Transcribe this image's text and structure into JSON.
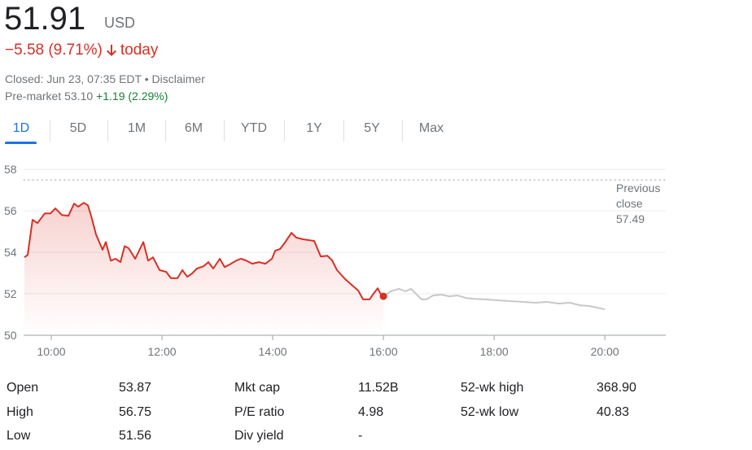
{
  "quote": {
    "price": "51.91",
    "currency": "USD",
    "change": "−5.58 (9.71%)",
    "change_period": "today",
    "status": "Closed: Jun 23, 07:35 EDT",
    "separator": "•",
    "disclaimer": "Disclaimer",
    "premarket_label": "Pre-market",
    "premarket_price": "53.10",
    "premarket_change": "+1.19 (2.29%)"
  },
  "tabs": [
    "1D",
    "5D",
    "1M",
    "6M",
    "YTD",
    "1Y",
    "5Y",
    "Max"
  ],
  "active_tab": "1D",
  "chart_data": {
    "type": "line",
    "series": [
      {
        "color": "#d93025",
        "x": [
          9.515,
          9.574,
          9.662,
          9.75,
          9.882,
          9.985,
          10.074,
          10.191,
          10.309,
          10.412,
          10.485,
          10.588,
          10.662,
          10.721,
          10.809,
          10.926,
          10.985,
          11.074,
          11.162,
          11.25,
          11.324,
          11.397,
          11.515,
          11.662,
          11.75,
          11.838,
          11.956,
          12.074,
          12.162,
          12.279,
          12.368,
          12.456,
          12.544,
          12.632,
          12.75,
          12.838,
          12.926,
          13.044,
          13.132,
          13.221,
          13.338,
          13.426,
          13.515,
          13.632,
          13.75,
          13.868,
          13.985,
          14.044,
          14.132,
          14.221,
          14.338,
          14.426,
          14.544,
          14.75,
          14.868,
          14.985,
          15.074,
          15.162,
          15.309,
          15.426,
          15.544,
          15.632,
          15.75,
          15.809,
          15.897,
          15.956,
          16.0
        ],
        "values": [
          53.76,
          53.88,
          55.57,
          55.41,
          55.88,
          55.88,
          56.12,
          55.8,
          55.76,
          56.35,
          56.2,
          56.39,
          56.27,
          55.76,
          54.86,
          54.12,
          54.5,
          53.6,
          53.69,
          53.53,
          54.3,
          54.2,
          53.69,
          54.5,
          53.6,
          53.76,
          53.14,
          53.06,
          52.75,
          52.75,
          53.14,
          52.82,
          52.98,
          53.22,
          53.33,
          53.53,
          53.22,
          53.69,
          53.29,
          53.41,
          53.6,
          53.69,
          53.61,
          53.45,
          53.53,
          53.45,
          53.69,
          54.08,
          54.16,
          54.47,
          54.94,
          54.71,
          54.63,
          54.55,
          53.8,
          53.84,
          53.61,
          53.14,
          52.71,
          52.43,
          52.16,
          51.73,
          51.73,
          51.96,
          52.27,
          51.96,
          51.88
        ]
      },
      {
        "color": "#c8c8c8",
        "x": [
          16.0,
          16.132,
          16.279,
          16.397,
          16.5,
          16.603,
          16.691,
          16.779,
          16.897,
          17.044,
          17.191,
          17.338,
          17.485,
          17.632,
          17.838,
          18.044,
          18.279,
          18.515,
          18.75,
          18.956,
          19.162,
          19.368,
          19.544,
          19.721,
          19.868,
          20.0
        ],
        "values": [
          51.88,
          52.12,
          52.24,
          52.12,
          52.24,
          51.96,
          51.73,
          51.73,
          51.92,
          51.96,
          51.88,
          51.92,
          51.8,
          51.76,
          51.73,
          51.69,
          51.65,
          51.61,
          51.57,
          51.61,
          51.53,
          51.57,
          51.45,
          51.41,
          51.33,
          51.25
        ]
      }
    ],
    "current_point_color": "#d93025",
    "reference_line": {
      "label": "Previous close",
      "value": 57.49
    },
    "xlim": [
      9.5,
      21.1
    ],
    "xticks": [
      {
        "value": 10,
        "label": "10:00"
      },
      {
        "value": 12,
        "label": "12:00"
      },
      {
        "value": 14,
        "label": "14:00"
      },
      {
        "value": 16,
        "label": "16:00"
      },
      {
        "value": 18,
        "label": "18:00"
      },
      {
        "value": 20,
        "label": "20:00"
      }
    ],
    "ylim": [
      50,
      58.4
    ],
    "yticks": [
      50,
      52,
      54,
      56,
      58
    ],
    "grid": true
  },
  "stats": {
    "rows": [
      [
        "Open",
        "53.87",
        "Mkt cap",
        "11.52B",
        "52-wk high",
        "368.90"
      ],
      [
        "High",
        "56.75",
        "P/E ratio",
        "4.98",
        "52-wk low",
        "40.83"
      ],
      [
        "Low",
        "51.56",
        "Div yield",
        "-",
        "",
        ""
      ]
    ]
  }
}
